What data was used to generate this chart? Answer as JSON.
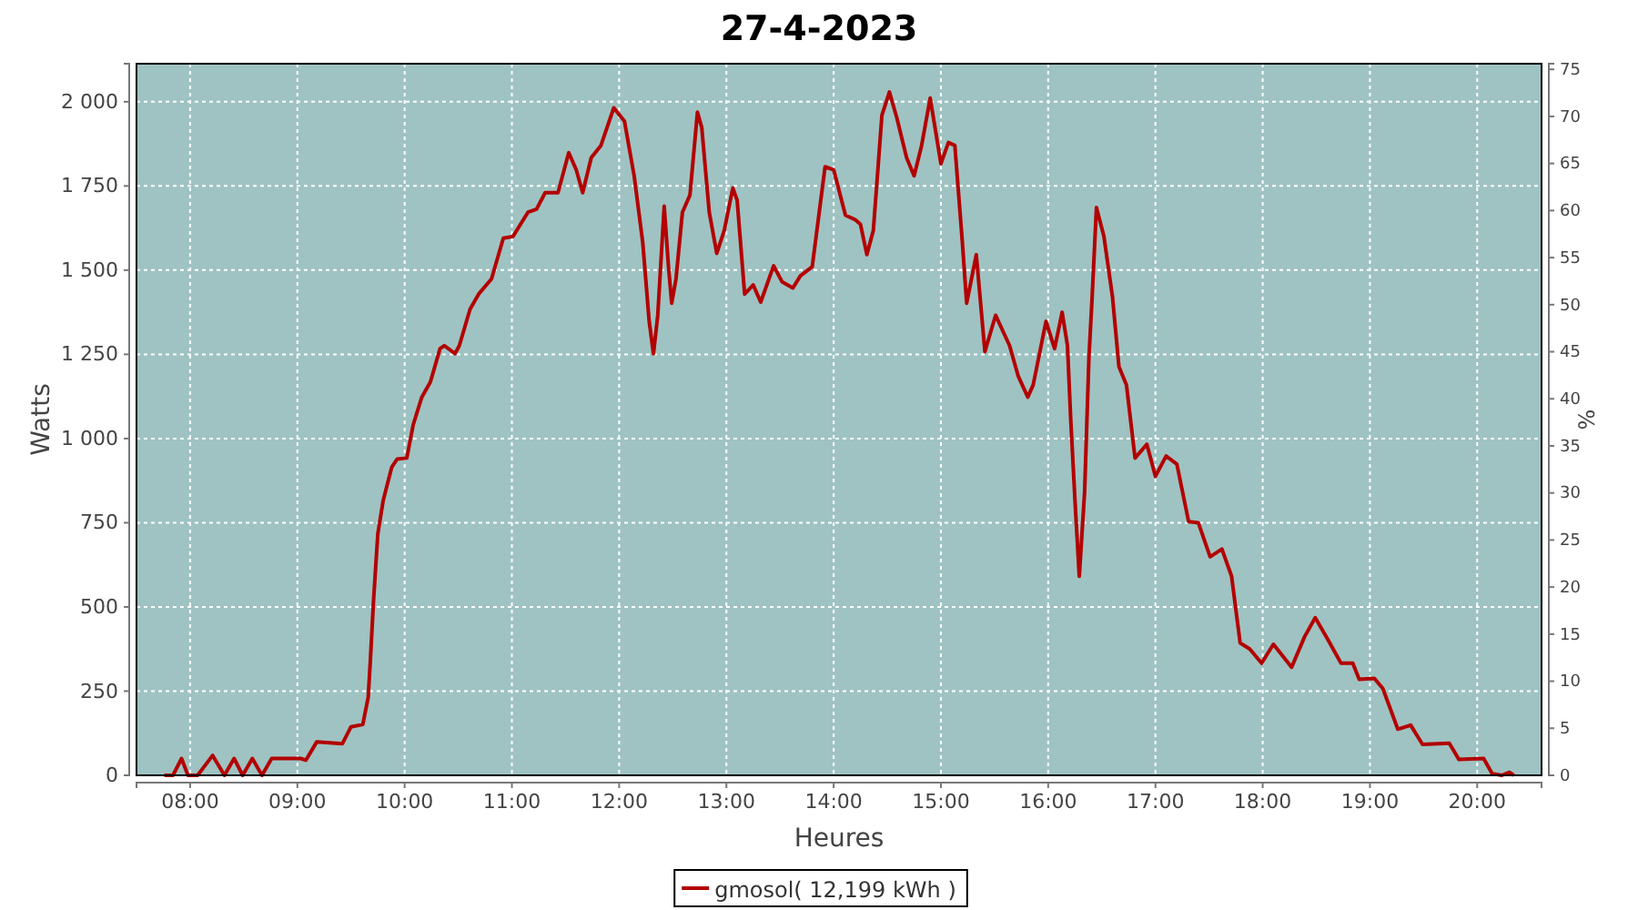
{
  "chart_data": {
    "type": "line",
    "title": "27-4-2023",
    "xlabel": "Heures",
    "ylabel": "Watts",
    "y2label": "%",
    "xlim": [
      7.5,
      20.6
    ],
    "xticks": [
      {
        "value": 8,
        "label": "08:00"
      },
      {
        "value": 9,
        "label": "09:00"
      },
      {
        "value": 10,
        "label": "10:00"
      },
      {
        "value": 11,
        "label": "11:00"
      },
      {
        "value": 12,
        "label": "12:00"
      },
      {
        "value": 13,
        "label": "13:00"
      },
      {
        "value": 14,
        "label": "14:00"
      },
      {
        "value": 15,
        "label": "15:00"
      },
      {
        "value": 16,
        "label": "16:00"
      },
      {
        "value": 17,
        "label": "17:00"
      },
      {
        "value": 18,
        "label": "18:00"
      },
      {
        "value": 19,
        "label": "19:00"
      },
      {
        "value": 20,
        "label": "20:00"
      }
    ],
    "ylim": [
      0,
      2113
    ],
    "yticks": [
      0,
      250,
      500,
      750,
      {
        "value": 1000,
        "label": "1 000"
      },
      {
        "value": 1250,
        "label": "1 250"
      },
      {
        "value": 1500,
        "label": "1 500"
      },
      {
        "value": 1750,
        "label": "1 750"
      },
      {
        "value": 2000,
        "label": "2 000"
      }
    ],
    "y2lim": [
      0,
      75.6
    ],
    "y2ticks": [
      0,
      5,
      10,
      15,
      20,
      25,
      30,
      35,
      40,
      45,
      50,
      55,
      60,
      65,
      70,
      75
    ],
    "grid": true,
    "legend": "bottom",
    "line_style": "solid",
    "marker": "none",
    "series": [
      {
        "name": "gmosol( 12,199 kWh )",
        "color": "#b30000",
        "x": [
          7.76,
          7.84,
          7.92,
          7.98,
          8.07,
          8.21,
          8.32,
          8.41,
          8.49,
          8.58,
          8.67,
          8.76,
          9.03,
          9.08,
          9.18,
          9.42,
          9.5,
          9.61,
          9.66,
          9.68,
          9.71,
          9.75,
          9.8,
          9.88,
          9.93,
          10.02,
          10.08,
          10.16,
          10.24,
          10.33,
          10.37,
          10.47,
          10.51,
          10.61,
          10.69,
          10.81,
          10.92,
          11.01,
          11.15,
          11.23,
          11.31,
          11.43,
          11.53,
          11.6,
          11.66,
          11.74,
          11.83,
          11.95,
          12.05,
          12.14,
          12.22,
          12.28,
          12.32,
          12.36,
          12.42,
          12.46,
          12.49,
          12.53,
          12.59,
          12.66,
          12.73,
          12.77,
          12.84,
          12.91,
          12.98,
          13.06,
          13.1,
          13.17,
          13.25,
          13.32,
          13.44,
          13.52,
          13.62,
          13.69,
          13.8,
          13.92,
          14.0,
          14.11,
          14.2,
          14.25,
          14.31,
          14.37,
          14.45,
          14.52,
          14.59,
          14.68,
          14.75,
          14.82,
          14.9,
          15.0,
          15.07,
          15.13,
          15.2,
          15.24,
          15.33,
          15.41,
          15.51,
          15.64,
          15.72,
          15.81,
          15.86,
          15.98,
          16.06,
          16.13,
          16.18,
          16.21,
          16.25,
          16.29,
          16.34,
          16.38,
          16.41,
          16.45,
          16.52,
          16.6,
          16.66,
          16.73,
          16.81,
          16.92,
          17.0,
          17.1,
          17.2,
          17.31,
          17.4,
          17.51,
          17.62,
          17.71,
          17.79,
          17.88,
          17.99,
          18.1,
          18.27,
          18.39,
          18.49,
          18.61,
          18.73,
          18.84,
          18.9,
          19.04,
          19.12,
          19.26,
          19.38,
          19.49,
          19.74,
          19.83,
          20.06,
          20.14,
          20.23,
          20.3,
          20.34
        ],
        "values": [
          0,
          0,
          50,
          0,
          0,
          59,
          0,
          50,
          0,
          50,
          0,
          50,
          50,
          45,
          99,
          94,
          144,
          151,
          231,
          339,
          519,
          717,
          816,
          915,
          939,
          942,
          1041,
          1123,
          1168,
          1267,
          1276,
          1252,
          1276,
          1384,
          1429,
          1474,
          1595,
          1600,
          1672,
          1681,
          1730,
          1730,
          1849,
          1798,
          1730,
          1834,
          1870,
          1982,
          1942,
          1780,
          1582,
          1348,
          1252,
          1366,
          1690,
          1510,
          1402,
          1474,
          1672,
          1723,
          1969,
          1924,
          1672,
          1550,
          1618,
          1744,
          1708,
          1429,
          1456,
          1405,
          1513,
          1465,
          1447,
          1483,
          1510,
          1807,
          1798,
          1663,
          1650,
          1636,
          1546,
          1618,
          1960,
          2029,
          1951,
          1834,
          1780,
          1870,
          2011,
          1816,
          1879,
          1870,
          1582,
          1402,
          1546,
          1258,
          1366,
          1276,
          1186,
          1123,
          1159,
          1348,
          1267,
          1375,
          1276,
          1059,
          816,
          591,
          843,
          1240,
          1420,
          1686,
          1600,
          1420,
          1213,
          1159,
          942,
          983,
          888,
          948,
          924,
          753,
          750,
          649,
          672,
          591,
          393,
          375,
          333,
          389,
          321,
          411,
          468,
          402,
          333,
          333,
          285,
          288,
          258,
          137,
          149,
          92,
          95,
          47,
          50,
          5,
          0,
          9,
          0
        ]
      }
    ]
  }
}
